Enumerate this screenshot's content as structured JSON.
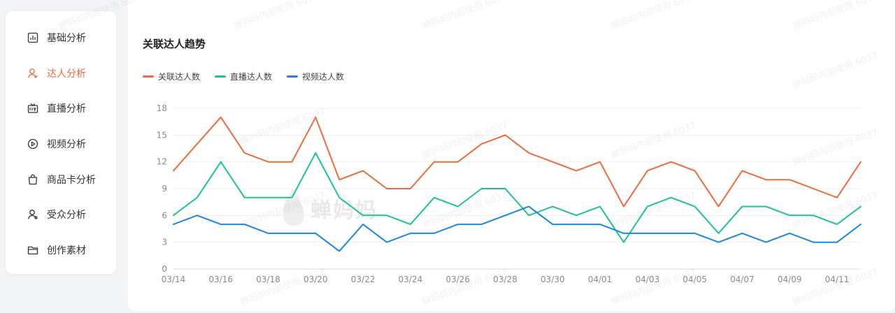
{
  "sidebar": {
    "items": [
      {
        "label": "基础分析",
        "icon": "bar-chart-icon"
      },
      {
        "label": "达人分析",
        "icon": "person-icon",
        "active": true
      },
      {
        "label": "直播分析",
        "icon": "live-tv-icon"
      },
      {
        "label": "视频分析",
        "icon": "play-circle-icon"
      },
      {
        "label": "商品卡分析",
        "icon": "shopping-bag-icon"
      },
      {
        "label": "受众分析",
        "icon": "audience-icon"
      },
      {
        "label": "创作素材",
        "icon": "folder-icon"
      }
    ]
  },
  "panel": {
    "title": "关联达人趋势"
  },
  "watermark": {
    "brand": "蝉妈妈",
    "text": "蝉妈妈内部使用",
    "code": "6037"
  },
  "colors": {
    "accent": "#ee6b3b",
    "green": "#1dc58d",
    "blue": "#1b86e8"
  },
  "chart_data": {
    "type": "line",
    "x": [
      "03/14",
      "03/15",
      "03/16",
      "03/17",
      "03/18",
      "03/19",
      "03/20",
      "03/21",
      "03/22",
      "03/23",
      "03/24",
      "03/25",
      "03/26",
      "03/27",
      "03/28",
      "03/29",
      "03/30",
      "03/31",
      "04/01",
      "04/02",
      "04/03",
      "04/04",
      "04/05",
      "04/06",
      "04/07",
      "04/08",
      "04/09",
      "04/10",
      "04/11",
      "04/12"
    ],
    "xticks": [
      "03/14",
      "03/16",
      "03/18",
      "03/20",
      "03/22",
      "03/24",
      "03/26",
      "03/28",
      "03/30",
      "04/01",
      "04/03",
      "04/05",
      "04/07",
      "04/09",
      "04/11"
    ],
    "yticks": [
      0,
      3,
      6,
      9,
      12,
      15,
      18
    ],
    "ylim": [
      0,
      18
    ],
    "grid": true,
    "legend_position": "top-left",
    "series": [
      {
        "name": "关联达人数",
        "color": "#ee6b3b",
        "values": [
          11,
          14,
          17,
          13,
          12,
          12,
          17,
          10,
          11,
          9,
          9,
          12,
          12,
          14,
          15,
          13,
          12,
          11,
          12,
          7,
          11,
          12,
          11,
          7,
          11,
          10,
          10,
          9,
          8,
          12
        ]
      },
      {
        "name": "直播达人数",
        "color": "#1dc58d",
        "values": [
          6,
          8,
          12,
          8,
          8,
          8,
          13,
          8,
          6,
          6,
          5,
          8,
          7,
          9,
          9,
          6,
          7,
          6,
          7,
          3,
          7,
          8,
          7,
          4,
          7,
          7,
          6,
          6,
          5,
          7
        ]
      },
      {
        "name": "视频达人数",
        "color": "#1b86e8",
        "values": [
          5,
          6,
          5,
          5,
          4,
          4,
          4,
          2,
          5,
          3,
          4,
          4,
          5,
          5,
          6,
          7,
          5,
          5,
          5,
          4,
          4,
          4,
          4,
          3,
          4,
          3,
          4,
          3,
          3,
          5
        ]
      }
    ]
  }
}
